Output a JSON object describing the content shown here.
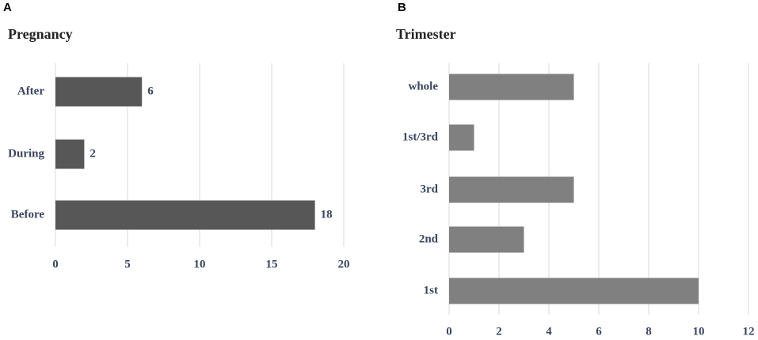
{
  "chart_data": [
    {
      "type": "bar",
      "orientation": "horizontal",
      "panel_label": "A",
      "title": "Pregnancy",
      "categories": [
        "After",
        "During",
        "Before"
      ],
      "values": [
        6,
        2,
        18
      ],
      "color": "#575757",
      "xlim": [
        0,
        20
      ],
      "xticks": [
        0,
        5,
        10,
        15,
        20
      ],
      "grid": true,
      "data_labels": true
    },
    {
      "type": "bar",
      "orientation": "horizontal",
      "panel_label": "B",
      "title": "Trimester",
      "categories": [
        "whole",
        "1st/3rd",
        "3rd",
        "2nd",
        "1st"
      ],
      "values": [
        5,
        1,
        5,
        3,
        10
      ],
      "color": "#808080",
      "xlim": [
        0,
        12
      ],
      "xticks": [
        0,
        2,
        4,
        6,
        8,
        10,
        12
      ],
      "grid": true,
      "data_labels": false
    }
  ]
}
